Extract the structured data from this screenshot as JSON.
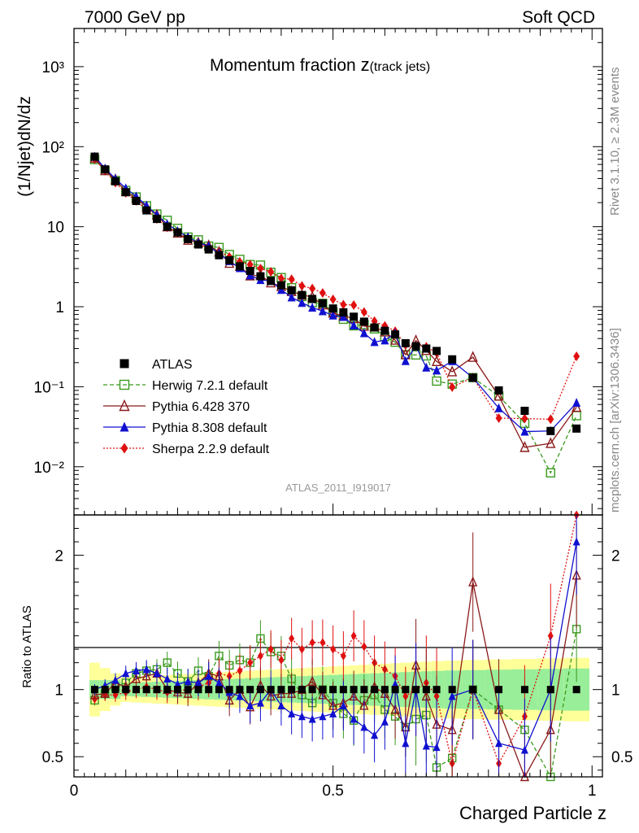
{
  "header": {
    "left": "7000 GeV pp",
    "right": "Soft QCD",
    "side_top": "Rivet 3.1.10, ≥ 2.3M events",
    "side_bottom": "mcplots.cern.ch [arXiv:1306.3436]",
    "analysis_tag": "ATLAS_2011_I919017"
  },
  "chart_data": {
    "type": "scatter",
    "title_main": "Momentum fraction ",
    "title_var": "z",
    "title_sub": "(track jets)",
    "ylabel": "(1/Njet)dN/dz",
    "ylabel_ratio": "Ratio to ATLAS",
    "xlabel": "Charged Particle z",
    "xlim": [
      0,
      1.02
    ],
    "ylim": [
      0.0025,
      3000
    ],
    "ylim_ratio": [
      0.35,
      2.3
    ],
    "yscale": "log",
    "x_ticks": [
      "0",
      "0.5",
      "1"
    ],
    "y_ticks_main": [
      "10⁻²",
      "10⁻¹",
      "1",
      "10",
      "10²",
      "10³"
    ],
    "y_ticks_ratio": [
      "0.5",
      "1",
      "2"
    ],
    "x": [
      0.04,
      0.06,
      0.08,
      0.1,
      0.12,
      0.14,
      0.16,
      0.18,
      0.2,
      0.22,
      0.24,
      0.26,
      0.28,
      0.3,
      0.32,
      0.34,
      0.36,
      0.38,
      0.4,
      0.42,
      0.44,
      0.46,
      0.48,
      0.5,
      0.52,
      0.54,
      0.56,
      0.58,
      0.6,
      0.62,
      0.64,
      0.66,
      0.68,
      0.7,
      0.73,
      0.77,
      0.82,
      0.87,
      0.92,
      0.97
    ],
    "atlas": [
      75,
      52,
      37,
      27,
      21,
      16,
      12.5,
      10,
      8.5,
      7,
      6,
      5.2,
      4.4,
      3.8,
      3.2,
      2.8,
      2.4,
      2.1,
      1.85,
      1.6,
      1.4,
      1.25,
      1.1,
      0.95,
      0.85,
      0.75,
      0.65,
      0.55,
      0.5,
      0.45,
      0.35,
      0.32,
      0.3,
      0.28,
      0.22,
      0.13,
      0.09,
      0.05,
      0.028,
      0.03
    ],
    "series": [
      {
        "name": "ATLAS",
        "ratio": [
          1,
          1,
          1,
          1,
          1,
          1,
          1,
          1,
          1,
          1,
          1,
          1,
          1,
          1,
          1,
          1,
          1,
          1,
          1,
          1,
          1,
          1,
          1,
          1,
          1,
          1,
          1,
          1,
          1,
          1,
          1,
          1,
          1,
          1,
          1,
          1,
          1,
          1,
          1,
          1
        ],
        "color": "#000000",
        "marker": "square-filled",
        "line": "none"
      },
      {
        "name": "Herwig 7.2.1 default",
        "ratio": [
          0.92,
          0.97,
          1.02,
          1.05,
          1.12,
          1.14,
          1.15,
          1.2,
          1.12,
          1.06,
          1.14,
          1.1,
          1.25,
          1.18,
          1.22,
          1.2,
          1.38,
          1.28,
          1.25,
          1.08,
          0.96,
          0.9,
          1.0,
          0.9,
          0.82,
          0.77,
          0.92,
          0.96,
          0.85,
          0.8,
          0.72,
          0.78,
          0.81,
          0.42,
          0.49,
          1.0,
          0.85,
          0.7,
          0.3,
          1.45
        ],
        "color": "#3a9a1f",
        "marker": "square-open",
        "line": "dashed"
      },
      {
        "name": "Pythia 6.428 370",
        "ratio": [
          0.96,
          0.97,
          1.05,
          1.02,
          1.08,
          1.1,
          1.12,
          1.0,
          0.98,
          0.97,
          1.05,
          1.12,
          1.1,
          0.92,
          1.0,
          0.87,
          1.03,
          0.95,
          0.97,
          0.97,
          1.0,
          1.06,
          0.96,
          0.88,
          0.9,
          0.95,
          0.88,
          1.02,
          0.97,
          0.85,
          0.72,
          1.18,
          0.95,
          0.74,
          0.7,
          1.8,
          0.85,
          0.35,
          0.7,
          1.85
        ],
        "color": "#8b1a1a",
        "marker": "triangle-open",
        "line": "solid"
      },
      {
        "name": "Pythia 8.308 default",
        "ratio": [
          1.0,
          1.03,
          1.07,
          1.12,
          1.14,
          1.15,
          1.12,
          1.08,
          1.04,
          1.06,
          1.05,
          1.1,
          1.05,
          0.98,
          0.95,
          0.88,
          0.9,
          1.0,
          0.88,
          0.82,
          0.8,
          0.78,
          0.8,
          0.82,
          0.88,
          0.78,
          0.72,
          0.66,
          0.76,
          1.04,
          0.6,
          1.0,
          0.58,
          0.57,
          0.95,
          1.0,
          0.6,
          0.55,
          1.0,
          2.1
        ],
        "color": "#1010d0",
        "marker": "triangle-filled",
        "line": "solid"
      },
      {
        "name": "Sherpa 2.2.9 default",
        "ratio": [
          0.93,
          0.96,
          0.96,
          0.98,
          1.0,
          1.02,
          1.0,
          0.98,
          0.99,
          1.0,
          1.02,
          1.05,
          1.12,
          1.1,
          1.14,
          1.2,
          1.25,
          1.3,
          1.22,
          1.38,
          1.3,
          1.35,
          1.35,
          1.3,
          1.25,
          1.4,
          1.32,
          1.2,
          1.15,
          1.1,
          0.95,
          1.0,
          1.05,
          0.95,
          0.45,
          1.0,
          0.45,
          0.8,
          1.4,
          8.0
        ],
        "color": "#e01010",
        "marker": "diamond-filled",
        "line": "dotted"
      }
    ],
    "legend_position": "lower-left",
    "grid": false
  }
}
